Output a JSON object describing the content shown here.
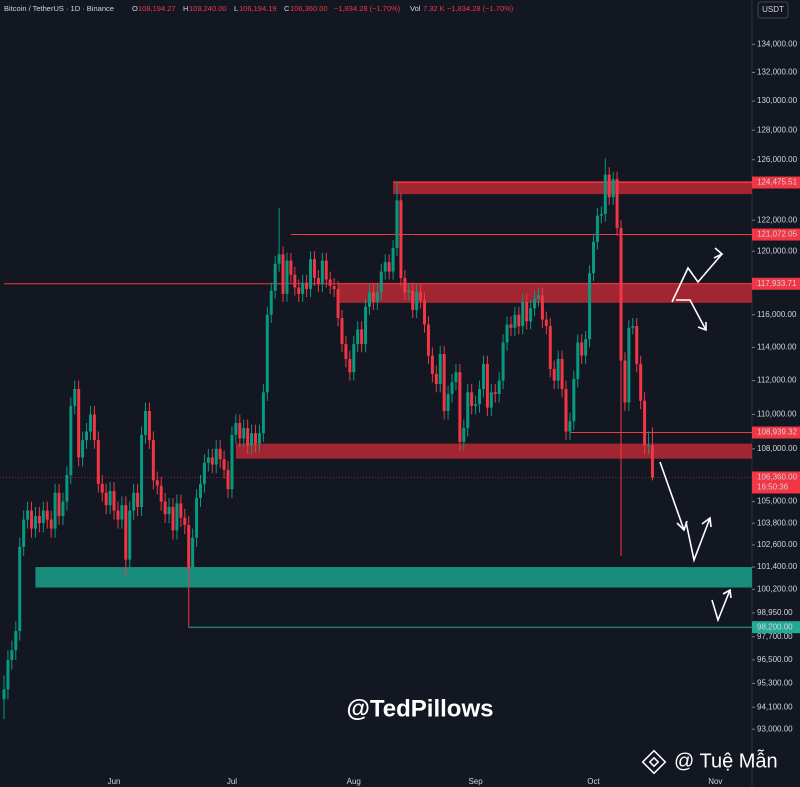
{
  "chart_data": {
    "type": "candlestick",
    "log_scale": true,
    "currency": "USDT",
    "header": {
      "symbol": "Bitcoin / TetherUS · 1D · Binance",
      "o_key": "O",
      "o": "108,194.27",
      "h_key": "H",
      "h": "109,240.00",
      "l_key": "L",
      "l": "106,194.19",
      "c_key": "C",
      "c": "106,360.00",
      "change": "−1,834.28 (−1.70%)",
      "vol_key": "Vol",
      "vol": "7.32 K",
      "vol_change": "−1,834.28 (−1.70%)"
    },
    "up_color": "#089981",
    "down_color": "#f23645",
    "ylim": [
      91000,
      137200
    ],
    "yticks": [
      {
        "value": 134000,
        "label": "134,000.00"
      },
      {
        "value": 132000,
        "label": "132,000.00"
      },
      {
        "value": 130000,
        "label": "130,000.00"
      },
      {
        "value": 128000,
        "label": "128,000.00"
      },
      {
        "value": 126000,
        "label": "126,000.00"
      },
      {
        "value": 122000,
        "label": "122,000.00"
      },
      {
        "value": 120000,
        "label": "120,000.00"
      },
      {
        "value": 116000,
        "label": "116,000.00"
      },
      {
        "value": 114000,
        "label": "114,000.00"
      },
      {
        "value": 112000,
        "label": "112,000.00"
      },
      {
        "value": 110000,
        "label": "110,000.00"
      },
      {
        "value": 108000,
        "label": "108,000.00"
      },
      {
        "value": 105000,
        "label": "105,000.00"
      },
      {
        "value": 103800,
        "label": "103,800.00"
      },
      {
        "value": 102600,
        "label": "102,600.00"
      },
      {
        "value": 101400,
        "label": "101,400.00"
      },
      {
        "value": 100200,
        "label": "100,200.00"
      },
      {
        "value": 98950,
        "label": "98,950.00"
      },
      {
        "value": 97700,
        "label": "97,700.00"
      },
      {
        "value": 96500,
        "label": "96,500.00"
      },
      {
        "value": 95300,
        "label": "95,300.00"
      },
      {
        "value": 94100,
        "label": "94,100.00"
      },
      {
        "value": 93000,
        "label": "93,000.00"
      }
    ],
    "xticks": [
      {
        "value": 28,
        "label": "Jun"
      },
      {
        "value": 58,
        "label": "Jul"
      },
      {
        "value": 89,
        "label": "Aug"
      },
      {
        "value": 120,
        "label": "Sep"
      },
      {
        "value": 150,
        "label": "Oct"
      },
      {
        "value": 181,
        "label": "Nov"
      }
    ],
    "zones": [
      {
        "low": 123710,
        "high": 124580,
        "start": 99,
        "color": "#b22833"
      },
      {
        "low": 116740,
        "high": 117990,
        "start": 85,
        "color": "#b22833"
      },
      {
        "low": 107430,
        "high": 108300,
        "start": 59,
        "color": "#b22833"
      },
      {
        "low": 100300,
        "high": 101400,
        "start": 8,
        "color": "#1a9a86"
      }
    ],
    "levels": [
      {
        "value": 124475.51,
        "label": "124,475.51",
        "start": 99,
        "color": "#f23645"
      },
      {
        "value": 121072.05,
        "label": "121,072.05",
        "start": 73,
        "color": "#f23645"
      },
      {
        "value": 117933.71,
        "label": "117,933.71",
        "start": 0,
        "color": "#f23645"
      },
      {
        "value": 108939.32,
        "label": "108,939.32",
        "start": 144,
        "color": "#f23645"
      },
      {
        "value": 98200,
        "label": "98,200.00",
        "start": 47,
        "color": "#22ab94"
      }
    ],
    "last_price": {
      "value": 106360,
      "label": "106,360.00",
      "countdown": "16:50:36"
    },
    "watermark": "@TedPillows",
    "credit": "@ Tuệ Mẫn",
    "candles": [
      [
        94500,
        95700,
        93500,
        95000
      ],
      [
        95000,
        97000,
        94500,
        96500
      ],
      [
        96500,
        97500,
        96000,
        97000
      ],
      [
        97000,
        98500,
        96500,
        98000
      ],
      [
        98000,
        103000,
        97500,
        102500
      ],
      [
        102500,
        104500,
        102000,
        104000
      ],
      [
        104000,
        105000,
        103500,
        104500
      ],
      [
        104500,
        105000,
        103000,
        103500
      ],
      [
        103500,
        104700,
        103000,
        104200
      ],
      [
        104200,
        104700,
        103300,
        103800
      ],
      [
        103800,
        105000,
        103300,
        104500
      ],
      [
        104500,
        105000,
        103500,
        104000
      ],
      [
        104000,
        104500,
        103000,
        103500
      ],
      [
        103500,
        106000,
        103000,
        105500
      ],
      [
        105500,
        106000,
        103700,
        104200
      ],
      [
        104200,
        105500,
        103700,
        105000
      ],
      [
        105000,
        107000,
        104500,
        106500
      ],
      [
        106500,
        111000,
        106000,
        110500
      ],
      [
        110500,
        112000,
        110000,
        111500
      ],
      [
        111500,
        112000,
        107000,
        107500
      ],
      [
        107500,
        109000,
        107000,
        108500
      ],
      [
        108500,
        109500,
        108000,
        109000
      ],
      [
        109000,
        110500,
        108500,
        110000
      ],
      [
        110000,
        110500,
        108000,
        108500
      ],
      [
        108500,
        109000,
        105500,
        106000
      ],
      [
        106000,
        106500,
        105000,
        105500
      ],
      [
        105500,
        106000,
        104300,
        104800
      ],
      [
        104800,
        106100,
        104300,
        105600
      ],
      [
        105600,
        106100,
        104000,
        104500
      ],
      [
        104500,
        105000,
        103500,
        104000
      ],
      [
        104000,
        105300,
        103500,
        104800
      ],
      [
        104800,
        105300,
        100900,
        101800
      ],
      [
        101800,
        105000,
        101300,
        104500
      ],
      [
        104500,
        106000,
        104000,
        105500
      ],
      [
        105500,
        106000,
        104200,
        104700
      ],
      [
        104700,
        109300,
        104200,
        108800
      ],
      [
        108800,
        110700,
        108300,
        110200
      ],
      [
        110200,
        110700,
        108000,
        108500
      ],
      [
        108500,
        109000,
        105700,
        106200
      ],
      [
        106200,
        106700,
        105400,
        105900
      ],
      [
        105900,
        106400,
        104500,
        105000
      ],
      [
        105000,
        105500,
        103800,
        104300
      ],
      [
        104300,
        105200,
        103800,
        104700
      ],
      [
        104700,
        105200,
        102900,
        103400
      ],
      [
        103400,
        105400,
        102900,
        104900
      ],
      [
        104900,
        105400,
        103600,
        104100
      ],
      [
        104100,
        104600,
        103200,
        103700
      ],
      [
        103700,
        104200,
        98200,
        101300
      ],
      [
        101300,
        103500,
        100800,
        103000
      ],
      [
        103000,
        105700,
        102500,
        105200
      ],
      [
        105200,
        106500,
        104700,
        106000
      ],
      [
        106000,
        107700,
        105500,
        107200
      ],
      [
        107200,
        108000,
        106700,
        107500
      ],
      [
        107500,
        108000,
        106600,
        107100
      ],
      [
        107100,
        108500,
        106600,
        108000
      ],
      [
        108000,
        108500,
        106900,
        107400
      ],
      [
        107400,
        107900,
        106300,
        106800
      ],
      [
        106800,
        107300,
        105200,
        105700
      ],
      [
        105700,
        109300,
        105200,
        108800
      ],
      [
        108800,
        110000,
        108300,
        109500
      ],
      [
        109500,
        110000,
        108100,
        108600
      ],
      [
        108600,
        109700,
        108100,
        109200
      ],
      [
        109200,
        109700,
        107700,
        108200
      ],
      [
        108200,
        109400,
        107700,
        108900
      ],
      [
        108900,
        109400,
        107800,
        108300
      ],
      [
        108300,
        109400,
        107800,
        108900
      ],
      [
        108900,
        111800,
        108400,
        111300
      ],
      [
        111300,
        116500,
        110800,
        116000
      ],
      [
        116000,
        118000,
        115500,
        117500
      ],
      [
        117500,
        119700,
        117000,
        119200
      ],
      [
        119200,
        122800,
        118700,
        119800
      ],
      [
        119800,
        120300,
        116800,
        117300
      ],
      [
        117300,
        119900,
        116800,
        119400
      ],
      [
        119400,
        119900,
        118000,
        118500
      ],
      [
        118500,
        119000,
        117200,
        117700
      ],
      [
        117700,
        118200,
        116800,
        117300
      ],
      [
        117300,
        118500,
        116800,
        118000
      ],
      [
        118000,
        118500,
        117100,
        117600
      ],
      [
        117600,
        120000,
        117100,
        119500
      ],
      [
        119500,
        120000,
        117800,
        118300
      ],
      [
        118300,
        118800,
        117400,
        117900
      ],
      [
        117900,
        119900,
        117400,
        119400
      ],
      [
        119400,
        119900,
        117700,
        118200
      ],
      [
        118200,
        118700,
        117300,
        117800
      ],
      [
        117800,
        118300,
        117100,
        117600
      ],
      [
        117600,
        118100,
        115300,
        115800
      ],
      [
        115800,
        116300,
        113700,
        114200
      ],
      [
        114200,
        114700,
        112800,
        113300
      ],
      [
        113300,
        113800,
        112000,
        112500
      ],
      [
        112500,
        114700,
        112000,
        114200
      ],
      [
        114200,
        115600,
        113700,
        115100
      ],
      [
        115100,
        115600,
        113700,
        114200
      ],
      [
        114200,
        117000,
        113700,
        116500
      ],
      [
        116500,
        117900,
        116000,
        117400
      ],
      [
        117400,
        117900,
        116300,
        116800
      ],
      [
        116800,
        117900,
        116300,
        117400
      ],
      [
        117400,
        119200,
        116900,
        118700
      ],
      [
        118700,
        119800,
        118200,
        119300
      ],
      [
        119300,
        119800,
        118200,
        118700
      ],
      [
        118700,
        120700,
        118200,
        120200
      ],
      [
        120200,
        124500,
        119700,
        123300
      ],
      [
        123300,
        123800,
        117800,
        118300
      ],
      [
        118300,
        118800,
        116900,
        117400
      ],
      [
        117400,
        118000,
        116900,
        117500
      ],
      [
        117500,
        118000,
        115800,
        116300
      ],
      [
        116300,
        117900,
        115800,
        117400
      ],
      [
        117400,
        117900,
        116400,
        116900
      ],
      [
        116900,
        117400,
        114900,
        115400
      ],
      [
        115400,
        115900,
        113000,
        113500
      ],
      [
        113500,
        114000,
        111900,
        112400
      ],
      [
        112400,
        112900,
        111300,
        111800
      ],
      [
        111800,
        114100,
        111300,
        113600
      ],
      [
        113600,
        114100,
        109700,
        110200
      ],
      [
        110200,
        111700,
        109700,
        111200
      ],
      [
        111200,
        112400,
        110700,
        111900
      ],
      [
        111900,
        113000,
        111400,
        112500
      ],
      [
        112500,
        113000,
        107900,
        108400
      ],
      [
        108400,
        109700,
        107900,
        109200
      ],
      [
        109200,
        111800,
        108700,
        111300
      ],
      [
        111300,
        111800,
        110000,
        110500
      ],
      [
        110500,
        111100,
        110000,
        110600
      ],
      [
        110600,
        112000,
        110100,
        111500
      ],
      [
        111500,
        113500,
        111000,
        113000
      ],
      [
        113000,
        113500,
        109900,
        110400
      ],
      [
        110400,
        111800,
        109900,
        111300
      ],
      [
        111300,
        111800,
        110700,
        111200
      ],
      [
        111200,
        112500,
        110700,
        112000
      ],
      [
        112000,
        114800,
        111500,
        114300
      ],
      [
        114300,
        115900,
        113800,
        115400
      ],
      [
        115400,
        115900,
        114700,
        115200
      ],
      [
        115200,
        116500,
        114700,
        116000
      ],
      [
        116000,
        116500,
        114800,
        115300
      ],
      [
        115300,
        117300,
        114800,
        116800
      ],
      [
        116800,
        117300,
        115100,
        115600
      ],
      [
        115600,
        116900,
        115100,
        116400
      ],
      [
        116400,
        117500,
        115900,
        117000
      ],
      [
        117000,
        117700,
        116500,
        117200
      ],
      [
        117200,
        117700,
        115200,
        115700
      ],
      [
        115700,
        116200,
        114800,
        115300
      ],
      [
        115300,
        115800,
        112200,
        112700
      ],
      [
        112700,
        113200,
        111500,
        112000
      ],
      [
        112000,
        113800,
        111500,
        113300
      ],
      [
        113300,
        113800,
        111000,
        111500
      ],
      [
        111500,
        112000,
        108500,
        109000
      ],
      [
        109000,
        110100,
        108500,
        109600
      ],
      [
        109600,
        112600,
        109100,
        112100
      ],
      [
        112100,
        114800,
        111600,
        114300
      ],
      [
        114300,
        114800,
        113000,
        113500
      ],
      [
        113500,
        115000,
        113000,
        114500
      ],
      [
        114500,
        119100,
        114000,
        118600
      ],
      [
        118600,
        121100,
        118100,
        120600
      ],
      [
        120600,
        122800,
        120100,
        122300
      ],
      [
        122300,
        122900,
        121800,
        122400
      ],
      [
        122400,
        126100,
        121900,
        125000
      ],
      [
        125000,
        125500,
        123000,
        123500
      ],
      [
        123500,
        125200,
        123000,
        124700
      ],
      [
        124700,
        125200,
        121000,
        121500
      ],
      [
        121500,
        122000,
        102000,
        113200
      ],
      [
        113200,
        113700,
        110200,
        110700
      ],
      [
        110700,
        115700,
        110200,
        115200
      ],
      [
        115200,
        115800,
        114800,
        115300
      ],
      [
        115300,
        115800,
        112500,
        113000
      ],
      [
        113000,
        113500,
        110300,
        110800
      ],
      [
        110800,
        111300,
        107700,
        108200
      ],
      [
        108200,
        109000,
        107700,
        108200
      ],
      [
        108194.27,
        109240,
        106194.19,
        106360
      ]
    ]
  }
}
